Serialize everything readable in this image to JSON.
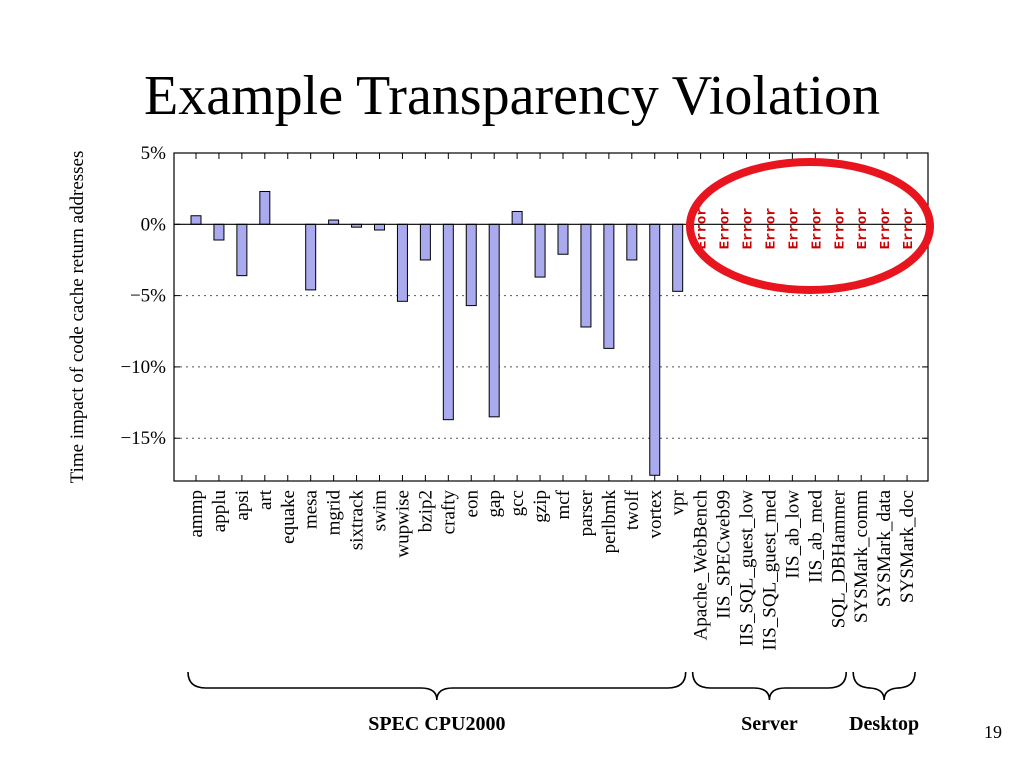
{
  "slide": {
    "title": "Example Transparency Violation",
    "number": "19"
  },
  "chart_data": {
    "type": "bar",
    "ylabel": "Time impact of code cache return addresses",
    "xlabel": "",
    "ylim": [
      -18,
      5
    ],
    "yticks": [
      5,
      0,
      -5,
      -10,
      -15
    ],
    "ytick_labels": [
      "5%",
      "0%",
      "−5%",
      "−10%",
      "−15%"
    ],
    "grid": "dashed horizontal at -5, -10, -15",
    "bar_color": "#aaaaee",
    "error_color": "#cc0000",
    "highlight_color": "#e8141e",
    "categories": [
      "ammp",
      "applu",
      "apsi",
      "art",
      "equake",
      "mesa",
      "mgrid",
      "sixtrack",
      "swim",
      "wupwise",
      "bzip2",
      "crafty",
      "eon",
      "gap",
      "gcc",
      "gzip",
      "mcf",
      "parser",
      "perlbmk",
      "twolf",
      "vortex",
      "vpr",
      "Apache_WebBench",
      "IIS_SPECweb99",
      "IIS_SQL_guest_low",
      "IIS_SQL_guest_med",
      "IIS_ab_low",
      "IIS_ab_med",
      "SQL_DBHammer",
      "SYSMark_comm",
      "SYSMark_data",
      "SYSMark_doc"
    ],
    "values": [
      0.6,
      -1.1,
      -3.6,
      2.3,
      0,
      -4.6,
      0.3,
      -0.2,
      -0.4,
      -5.4,
      -2.5,
      -13.7,
      -5.7,
      -13.5,
      0.9,
      -3.7,
      -2.1,
      -7.2,
      -8.7,
      -2.5,
      -17.6,
      -4.7,
      null,
      null,
      null,
      null,
      null,
      null,
      null,
      null,
      null,
      null
    ],
    "error_label": "Error",
    "groups": [
      {
        "name": "SPEC CPU2000",
        "from": "ammp",
        "to": "vpr"
      },
      {
        "name": "Server",
        "from": "Apache_WebBench",
        "to": "SQL_DBHammer"
      },
      {
        "name": "Desktop",
        "from": "SYSMark_comm",
        "to": "SYSMark_doc"
      }
    ]
  }
}
